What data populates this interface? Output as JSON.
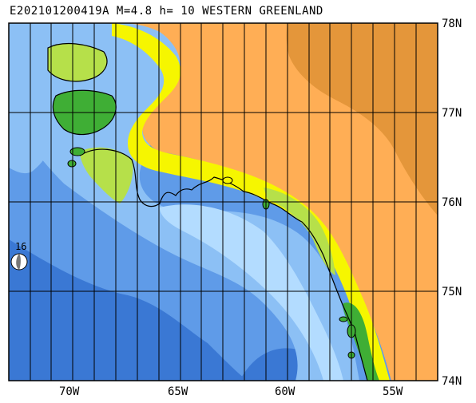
{
  "title": "E202101200419A M=4.8 h= 10 WESTERN GREENLAND",
  "event": {
    "id": "E202101200419A",
    "magnitude": "M=4.8",
    "depth": "h= 10",
    "region": "WESTERN GREENLAND",
    "beachball_label": "16"
  },
  "axes": {
    "lon_labels": [
      "70W",
      "65W",
      "60W",
      "55W"
    ],
    "lat_labels": [
      "78N",
      "77N",
      "76N",
      "75N",
      "74N"
    ],
    "lon_range": [
      -73,
      -53
    ],
    "lat_range": [
      74,
      78
    ]
  },
  "colors": {
    "deep_ocean": "#3a78d4",
    "mid_ocean": "#5f9be8",
    "shallow_ocean": "#8cc0f5",
    "shelf": "#b3dcff",
    "coast_green": "#3fae35",
    "coast_lime": "#b6e04a",
    "coast_yellow": "#f6f600",
    "ice_orange": "#ffae55",
    "ice_dark": "#e4963a",
    "grid": "#000000"
  }
}
